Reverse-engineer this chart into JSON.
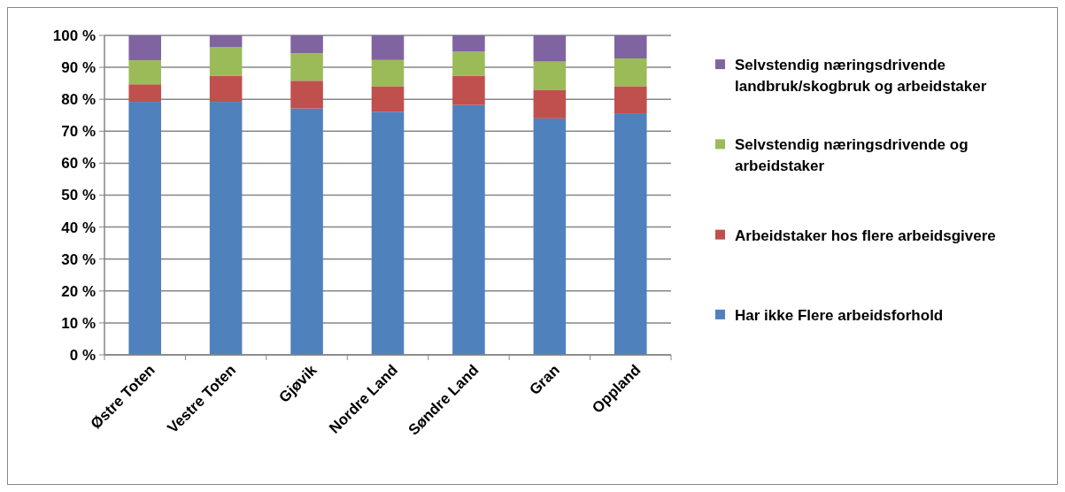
{
  "chart_data": {
    "type": "bar",
    "stacked": true,
    "categories": [
      "Østre Toten",
      "Vestre Toten",
      "Gjøvik",
      "Nordre Land",
      "Søndre Land",
      "Gran",
      "Oppland"
    ],
    "series": [
      {
        "name": "Har ikke Flere arbeidsforhold",
        "color": "#4f81bd",
        "values": [
          79.2,
          79.2,
          77.1,
          76.1,
          78.2,
          74.0,
          75.6
        ]
      },
      {
        "name": "Arbeidstaker hos flere arbeidsgivere",
        "color": "#c0504d",
        "values": [
          5.5,
          8.2,
          8.7,
          8.0,
          9.2,
          9.0,
          8.5
        ]
      },
      {
        "name": "Selvstendig næringsdrivende og arbeidstaker",
        "color": "#9bbb59",
        "values": [
          7.5,
          9.0,
          8.6,
          8.2,
          7.5,
          8.8,
          8.7
        ]
      },
      {
        "name": "Selvstendig næringsdrivende landbruk/skogbruk og arbeidstaker",
        "color": "#8064a2",
        "values": [
          7.8,
          3.6,
          5.6,
          7.7,
          5.1,
          8.2,
          7.2
        ]
      }
    ],
    "ylim": [
      0,
      100
    ],
    "yticks": [
      {
        "value": 0,
        "label": "0 %"
      },
      {
        "value": 10,
        "label": "10 %"
      },
      {
        "value": 20,
        "label": "20 %"
      },
      {
        "value": 30,
        "label": "30 %"
      },
      {
        "value": 40,
        "label": "40 %"
      },
      {
        "value": 50,
        "label": "50 %"
      },
      {
        "value": 60,
        "label": "60 %"
      },
      {
        "value": 70,
        "label": "70 %"
      },
      {
        "value": 80,
        "label": "80 %"
      },
      {
        "value": 90,
        "label": "90 %"
      },
      {
        "value": 100,
        "label": "100 %"
      }
    ],
    "grid": "y",
    "legend": "right"
  }
}
